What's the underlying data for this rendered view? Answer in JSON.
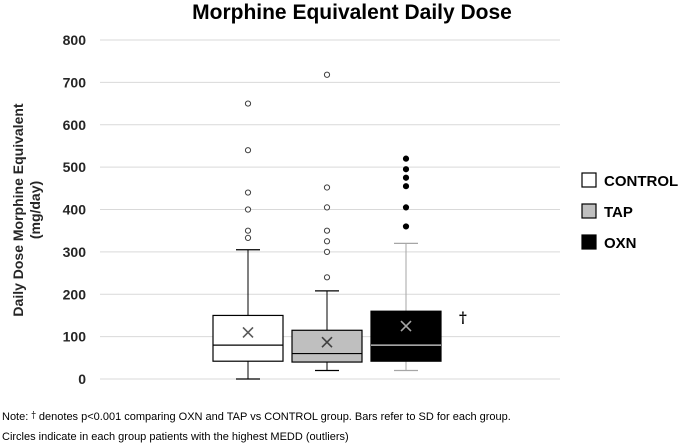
{
  "chart_data": {
    "type": "box",
    "title": "Morphine Equivalent Daily Dose",
    "ylabel_lines": [
      "Daily Dose Morphine Equivalent",
      "(mg/day)"
    ],
    "ylim": [
      0,
      800
    ],
    "yticks": [
      0,
      100,
      200,
      300,
      400,
      500,
      600,
      700,
      800
    ],
    "grid": true,
    "legend_position": "right",
    "groups": [
      {
        "name": "CONTROL",
        "fill": "#ffffff",
        "stroke": "#000000",
        "whisker_color": "#000000",
        "mean_color": "#595959",
        "median_color": "#000000",
        "outlier_fill": "#ffffff",
        "outlier_stroke": "#404040",
        "min": 0,
        "q1": 42,
        "median": 80,
        "q3": 150,
        "max": 305,
        "mean": 110,
        "outliers": [
          333,
          350,
          400,
          440,
          540,
          650
        ]
      },
      {
        "name": "TAP",
        "fill": "#bfbfbf",
        "stroke": "#000000",
        "whisker_color": "#000000",
        "mean_color": "#404040",
        "median_color": "#000000",
        "outlier_fill": "#ffffff",
        "outlier_stroke": "#404040",
        "min": 20,
        "q1": 40,
        "median": 60,
        "q3": 115,
        "max": 208,
        "mean": 87,
        "outliers": [
          240,
          300,
          325,
          350,
          405,
          452,
          718
        ]
      },
      {
        "name": "OXN",
        "fill": "#000000",
        "stroke": "#000000",
        "whisker_color": "#a6a6a6",
        "mean_color": "#a6a6a6",
        "median_color": "#d9d9d9",
        "outlier_fill": "#000000",
        "outlier_stroke": "#000000",
        "min": 20,
        "q1": 42,
        "median": 80,
        "q3": 160,
        "max": 320,
        "mean": 125,
        "outliers": [
          360,
          405,
          455,
          475,
          495,
          520
        ]
      }
    ],
    "annotation": {
      "text": "†",
      "group": "OXN",
      "y": 145
    }
  },
  "notes": {
    "line1_prefix": "Note: ",
    "line1_dagger": "†",
    "line1_rest": " denotes p<0.001 comparing OXN and TAP vs CONTROL group. Bars refer to SD for each group.",
    "line2": "Circles indicate in each group patients with the highest MEDD (outliers)"
  }
}
